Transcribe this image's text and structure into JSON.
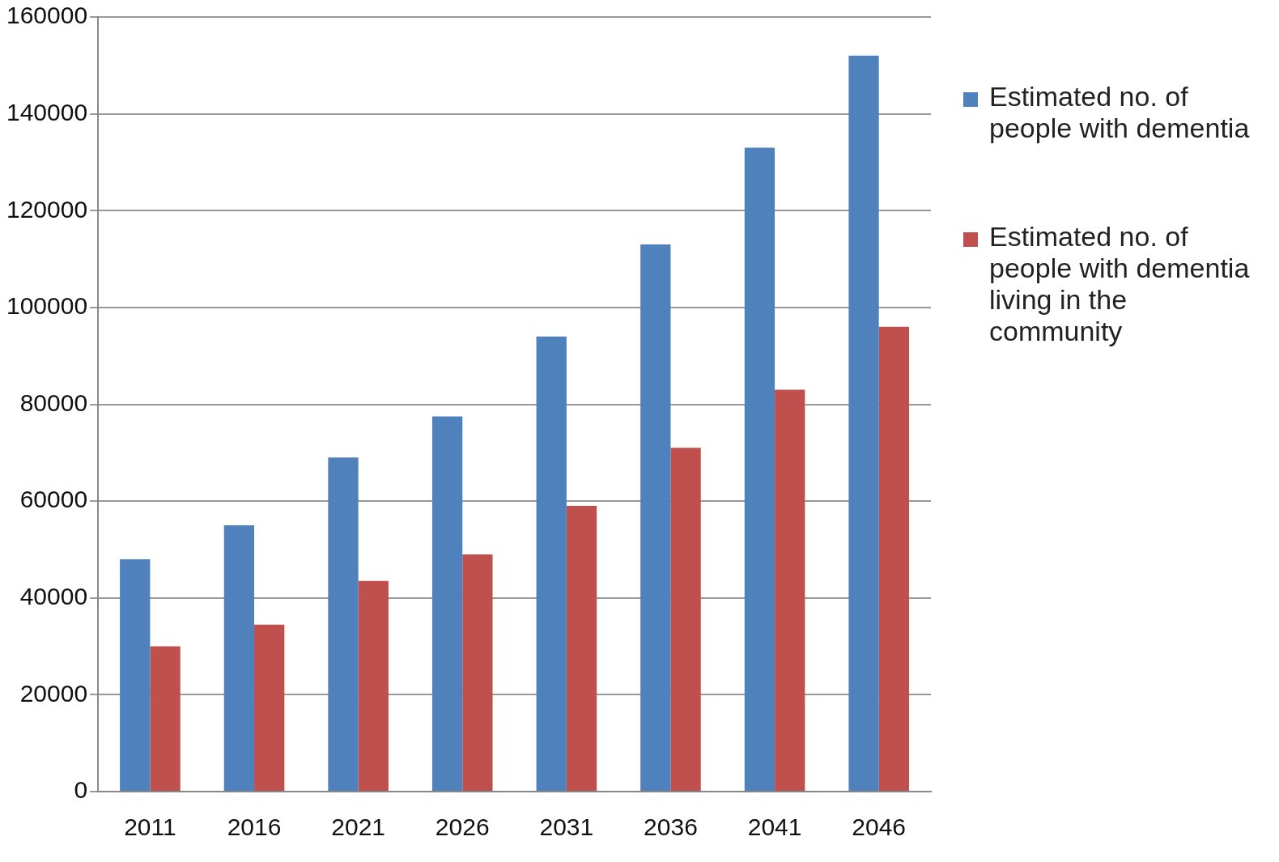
{
  "chart_data": {
    "type": "bar",
    "categories": [
      "2011",
      "2016",
      "2021",
      "2026",
      "2031",
      "2036",
      "2041",
      "2046"
    ],
    "series": [
      {
        "name": "Estimated no. of people with dementia",
        "color": "#4f81bd",
        "values": [
          48000,
          55000,
          69000,
          77500,
          94000,
          113000,
          133000,
          152000
        ]
      },
      {
        "name": "Estimated no. of people with dementia living in the community",
        "color": "#c0504d",
        "values": [
          30000,
          34500,
          43500,
          49000,
          59000,
          71000,
          83000,
          96000
        ]
      }
    ],
    "ylim": [
      0,
      160000
    ],
    "yticks": [
      0,
      20000,
      40000,
      60000,
      80000,
      100000,
      120000,
      140000,
      160000
    ],
    "grid": "y",
    "legend": "right"
  }
}
